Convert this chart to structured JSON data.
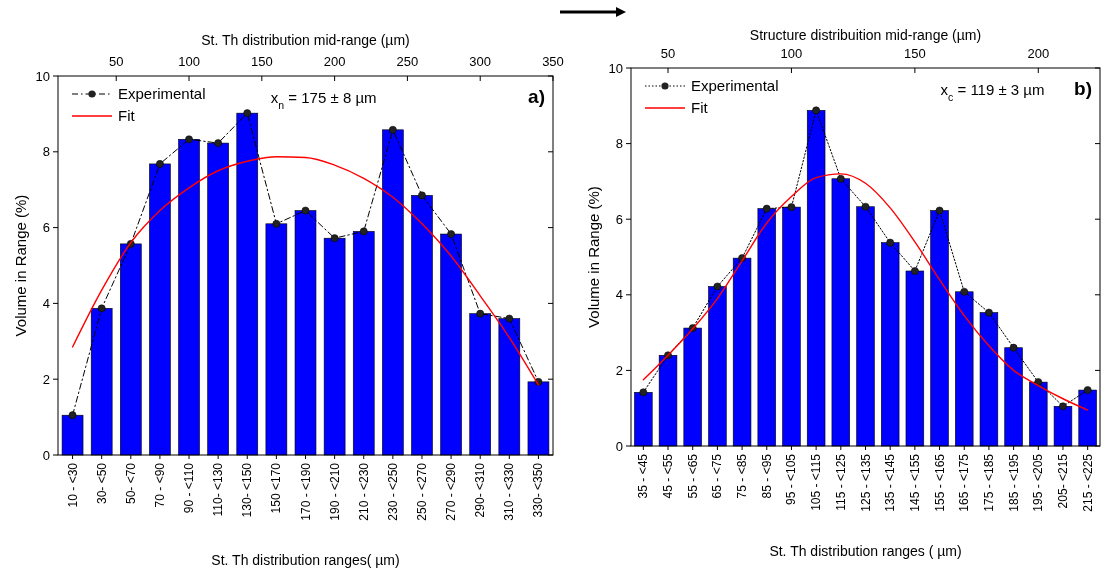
{
  "chart_data": [
    {
      "type": "bar",
      "categories": [
        "10 - <30",
        "30- <50",
        "50- <70",
        "70 - <90",
        "90 - <110",
        "110- <130",
        "130- <150",
        "150 <170",
        "170 - <190",
        "190 - <210",
        "210 - <230",
        "230 - <250",
        "250 - <270",
        "270 - <290",
        "290- <310",
        "310 - <330",
        "330- <350"
      ],
      "series": [
        {
          "color": "#0000ff",
          "values": [
            1.05,
            3.87,
            5.57,
            7.68,
            8.33,
            8.23,
            9.02,
            6.1,
            6.45,
            5.72,
            5.9,
            8.58,
            6.85,
            5.83,
            3.73,
            3.6,
            1.93
          ]
        },
        {
          "type": "line",
          "name": "Experimental",
          "color": "#000000",
          "marker": "circle",
          "line_style": "dashed",
          "values": [
            1.05,
            3.87,
            5.57,
            7.68,
            8.33,
            8.23,
            9.02,
            6.1,
            6.45,
            5.72,
            5.9,
            8.58,
            6.85,
            5.83,
            3.73,
            3.6,
            1.93
          ]
        },
        {
          "type": "line",
          "name": "Fit",
          "color": "#ff0000",
          "line_style": "solid",
          "values": [
            2.85,
            4.35,
            5.6,
            6.45,
            7.05,
            7.5,
            7.75,
            7.87,
            7.85,
            7.65,
            7.3,
            6.8,
            6.1,
            5.25,
            4.2,
            3.1,
            1.85
          ]
        }
      ],
      "xlabel": "St. Th distribution ranges( µm)",
      "x2label": "St. Th distribution mid-range (µm)",
      "ylabel": "Volume in Range (%)",
      "x2lim": [
        10,
        350
      ],
      "x2ticks": [
        50,
        100,
        150,
        200,
        250,
        300,
        350
      ],
      "ylim": [
        0,
        10
      ],
      "yticks": [
        0,
        2,
        4,
        6,
        8,
        10
      ],
      "legend": "top left",
      "annotations": [
        "x$_{n}$ = 175 ± 8 µm",
        "a)"
      ]
    },
    {
      "type": "bar",
      "categories": [
        "35 - <45",
        "45 - <55",
        "55 - <65",
        "65 - <75",
        "75 - <85",
        "85 - <95",
        "95 - <105",
        "105 - <115",
        "115 - <125",
        "125 - <135",
        "135 - <145",
        "145 - <155",
        "155 - <165",
        "165 - <175",
        "175 - <185",
        "185 - <195",
        "195 - <205",
        "205- <215",
        "215 - <225"
      ],
      "series": [
        {
          "color": "#0000ff",
          "values": [
            1.42,
            2.4,
            3.12,
            4.22,
            4.97,
            6.28,
            6.32,
            8.88,
            7.07,
            6.33,
            5.38,
            4.63,
            6.23,
            4.08,
            3.53,
            2.6,
            1.69,
            1.05,
            1.48
          ]
        },
        {
          "type": "line",
          "name": "Experimental",
          "color": "#000000",
          "marker": "circle",
          "line_style": "dotted",
          "values": [
            1.42,
            2.4,
            3.12,
            4.22,
            4.97,
            6.28,
            6.32,
            8.88,
            7.07,
            6.33,
            5.38,
            4.63,
            6.23,
            4.08,
            3.53,
            2.6,
            1.69,
            1.05,
            1.48
          ]
        },
        {
          "type": "line",
          "name": "Fit",
          "color": "#ff0000",
          "line_style": "solid",
          "values": [
            1.75,
            2.4,
            3.1,
            3.9,
            4.9,
            5.9,
            6.6,
            7.1,
            7.2,
            6.95,
            6.3,
            5.4,
            4.4,
            3.45,
            2.65,
            2.0,
            1.6,
            1.25,
            0.95
          ]
        }
      ],
      "xlabel": "St. Th distribution ranges ( µm)",
      "x2label": "Structure distribuition mid-range (µm)",
      "ylabel": "Volume in Range (%)",
      "x2lim": [
        35,
        225
      ],
      "x2ticks": [
        50,
        100,
        150,
        200
      ],
      "ylim": [
        0,
        10
      ],
      "yticks": [
        0,
        2,
        4,
        6,
        8,
        10
      ],
      "legend": "top left",
      "annotations": [
        "x$_{c}$ = 119 ± 3 µm",
        "b)"
      ]
    }
  ]
}
